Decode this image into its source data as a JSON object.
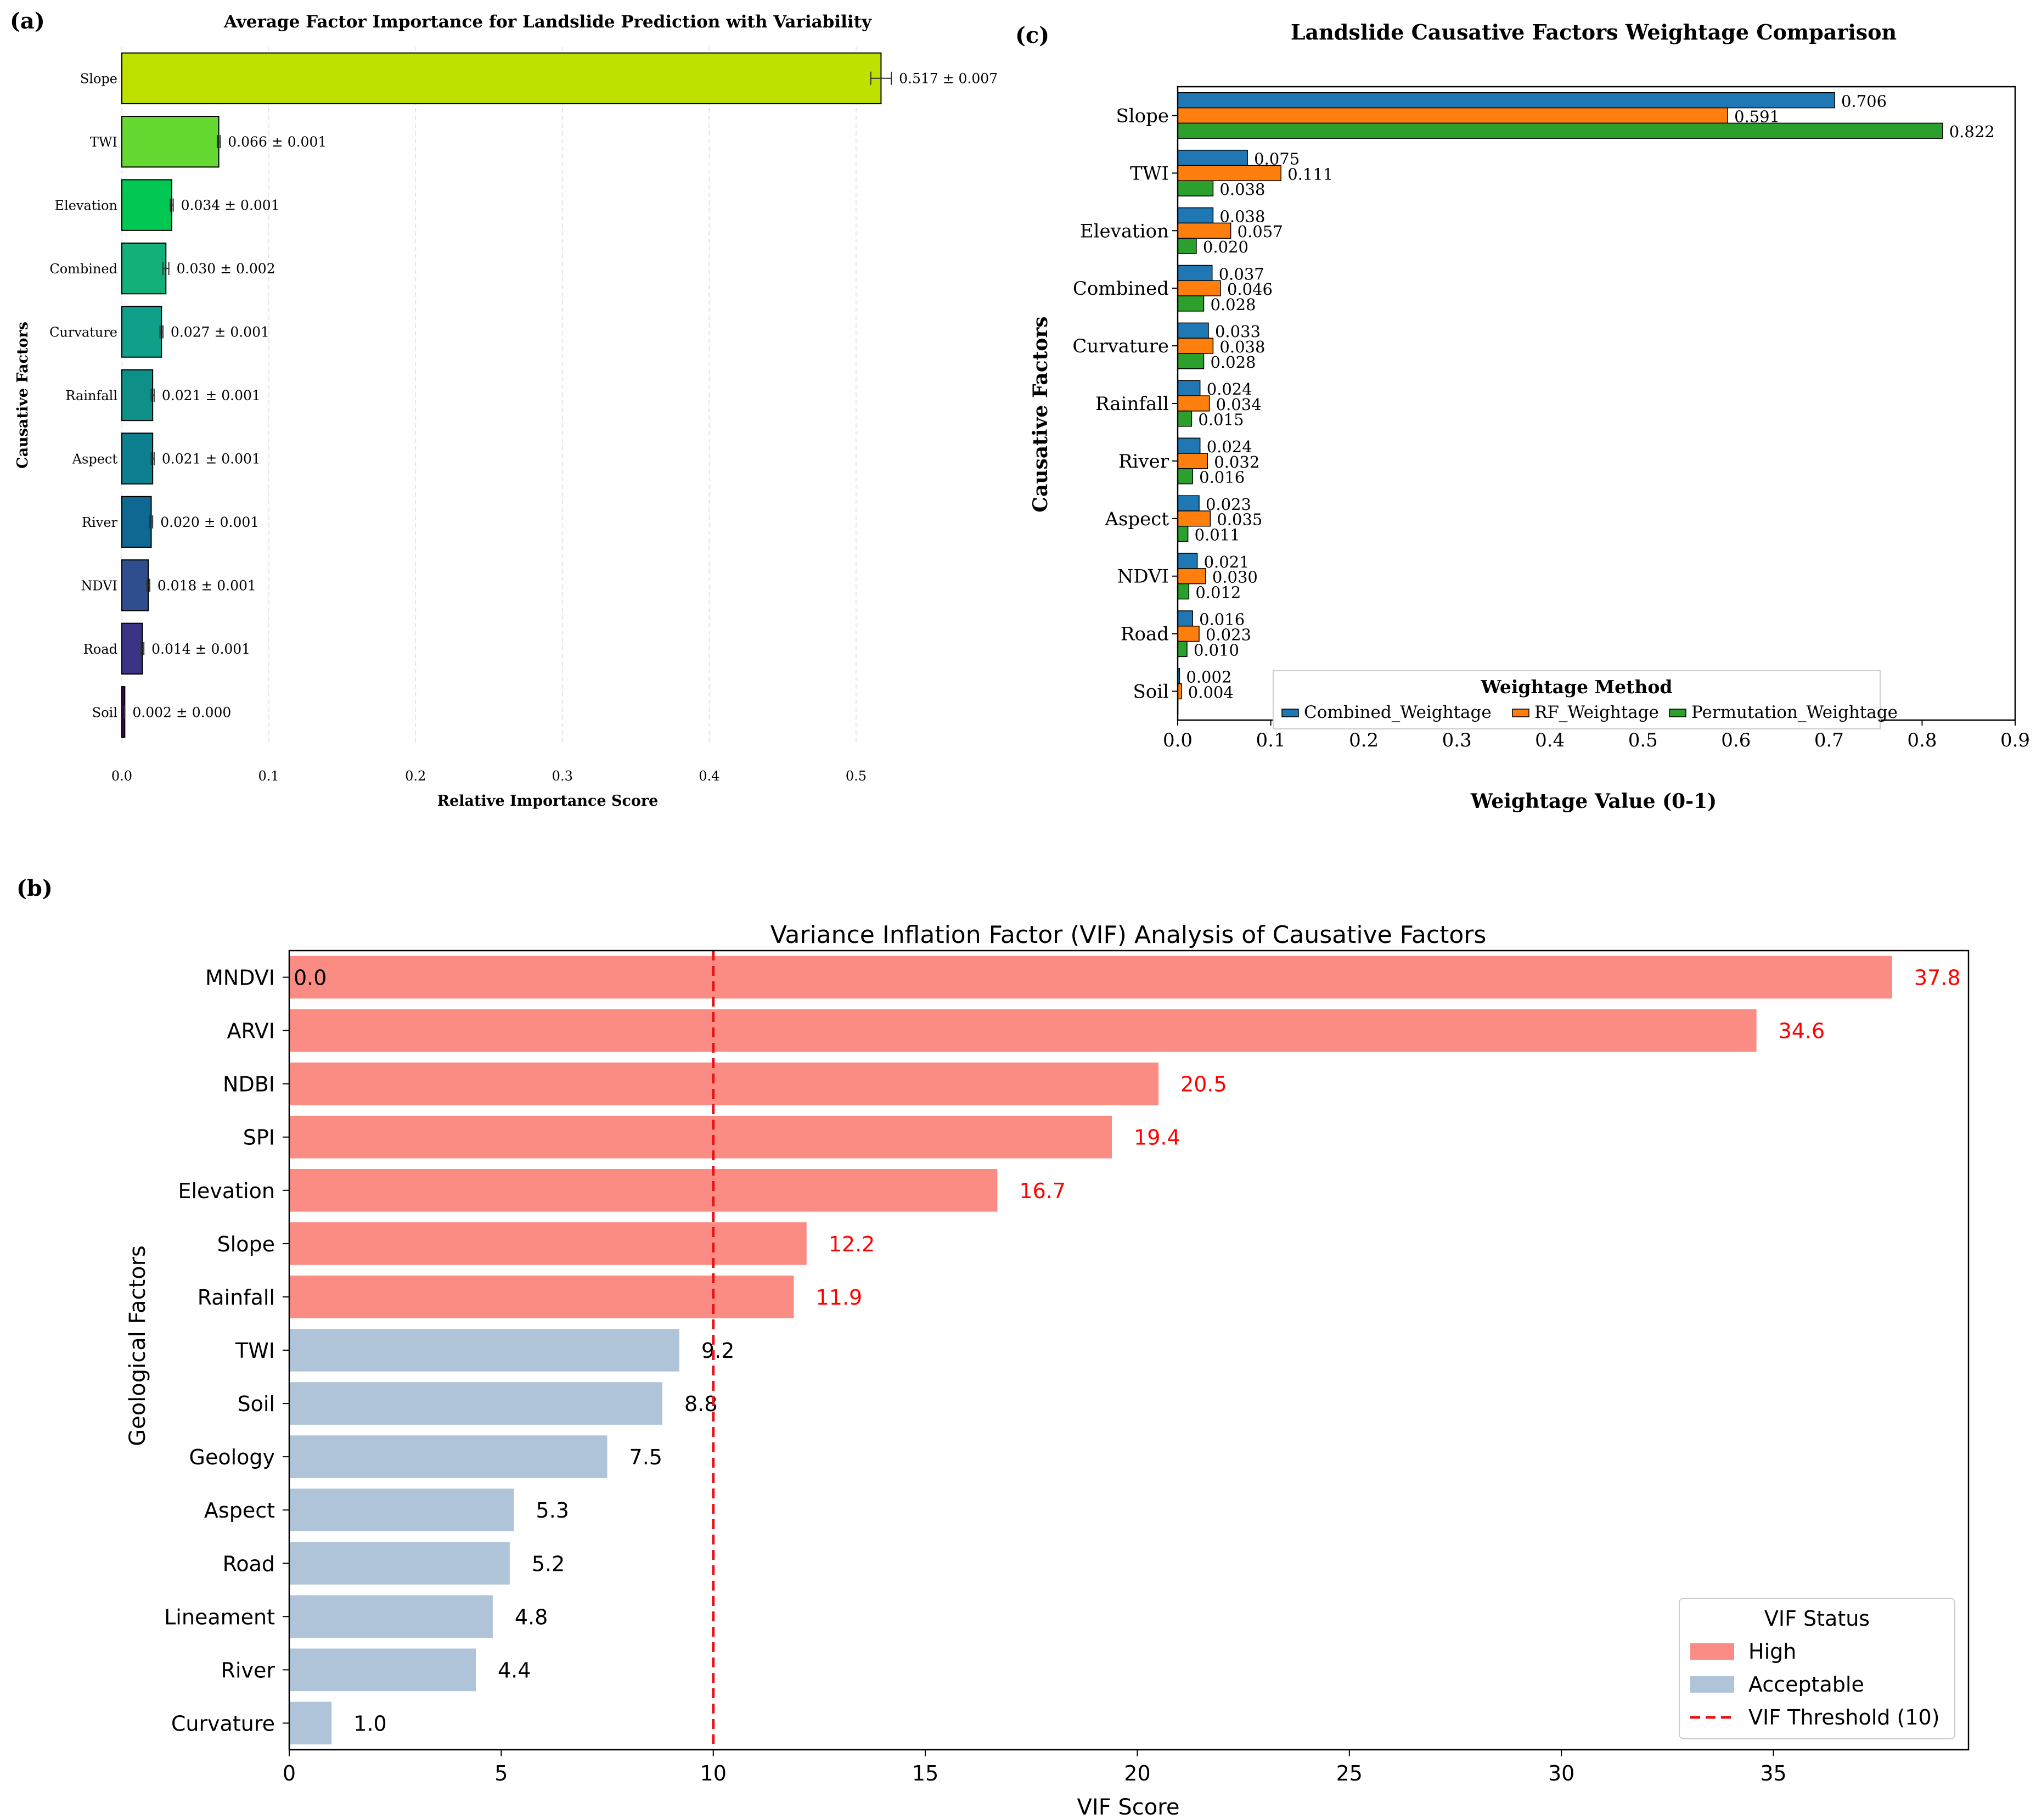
{
  "panels": {
    "a": "(a)",
    "b": "(b)",
    "c": "(c)"
  },
  "chart_data": [
    {
      "id": "a",
      "type": "bar",
      "orientation": "horizontal",
      "title": "Average Factor Importance for Landslide Prediction with Variability",
      "xlabel": "Relative Importance Score",
      "ylabel": "Causative Factors",
      "xlim": [
        0,
        0.58
      ],
      "xticks": [
        "0.0",
        "0.1",
        "0.2",
        "0.3",
        "0.4",
        "0.5"
      ],
      "grid": "x",
      "categories": [
        "Slope",
        "TWI",
        "Elevation",
        "Combined",
        "Curvature",
        "Rainfall",
        "Aspect",
        "River",
        "NDVI",
        "Road",
        "Soil"
      ],
      "values": [
        0.517,
        0.066,
        0.034,
        0.03,
        0.027,
        0.021,
        0.021,
        0.02,
        0.018,
        0.014,
        0.002
      ],
      "errors": [
        0.007,
        0.001,
        0.001,
        0.002,
        0.001,
        0.001,
        0.001,
        0.001,
        0.001,
        0.001,
        0.0
      ],
      "labels": [
        "0.517 ± 0.007",
        "0.066 ± 0.001",
        "0.034 ± 0.001",
        "0.030 ± 0.002",
        "0.027 ± 0.001",
        "0.021 ± 0.001",
        "0.021 ± 0.001",
        "0.020 ± 0.001",
        "0.018 ± 0.001",
        "0.014 ± 0.001",
        "0.002 ± 0.000"
      ],
      "colors": [
        "#c0e000",
        "#65d931",
        "#00c853",
        "#14b07a",
        "#10a08a",
        "#0e9088",
        "#0d7f8e",
        "#0e6892",
        "#2f4e8e",
        "#3b3486",
        "#440154"
      ]
    },
    {
      "id": "c",
      "type": "bar",
      "orientation": "horizontal",
      "title": "Landslide Causative Factors Weightage Comparison",
      "xlabel": "Weightage Value (0-1)",
      "ylabel": "Causative Factors",
      "xlim": [
        0,
        0.9
      ],
      "xticks": [
        "0.0",
        "0.1",
        "0.2",
        "0.3",
        "0.4",
        "0.5",
        "0.6",
        "0.7",
        "0.8",
        "0.9"
      ],
      "categories": [
        "Slope",
        "TWI",
        "Elevation",
        "Combined",
        "Curvature",
        "Rainfall",
        "River",
        "Aspect",
        "NDVI",
        "Road",
        "Soil"
      ],
      "series": [
        {
          "name": "Combined_Weightage",
          "color": "#1f77b4",
          "values": [
            0.706,
            0.075,
            0.038,
            0.037,
            0.033,
            0.024,
            0.024,
            0.023,
            0.021,
            0.016,
            0.002
          ],
          "labels": [
            "0.706",
            "0.075",
            "0.038",
            "0.037",
            "0.033",
            "0.024",
            "0.024",
            "0.023",
            "0.021",
            "0.016",
            "0.002"
          ]
        },
        {
          "name": "RF_Weightage",
          "color": "#ff7f0e",
          "values": [
            0.591,
            0.111,
            0.057,
            0.046,
            0.038,
            0.034,
            0.032,
            0.035,
            0.03,
            0.023,
            0.004
          ],
          "labels": [
            "0.591",
            "0.111",
            "0.057",
            "0.046",
            "0.038",
            "0.034",
            "0.032",
            "0.035",
            "0.030",
            "0.023",
            "0.004"
          ]
        },
        {
          "name": "Permutation_Weightage",
          "color": "#2ca02c",
          "values": [
            0.822,
            0.038,
            0.02,
            0.028,
            0.028,
            0.015,
            0.016,
            0.011,
            0.012,
            0.01,
            0.0
          ],
          "labels": [
            "0.822",
            "0.038",
            "0.020",
            "0.028",
            "0.028",
            "0.015",
            "0.016",
            "0.011",
            "0.012",
            "0.010",
            ""
          ]
        }
      ],
      "legend_title": "Weightage Method",
      "legend_position": "bottom-right"
    },
    {
      "id": "b",
      "type": "bar",
      "orientation": "horizontal",
      "title": "Variance Inflation Factor (VIF) Analysis of Causative Factors",
      "xlabel": "VIF Score",
      "ylabel": "Geological Factors",
      "xlim": [
        0,
        39.6
      ],
      "xticks": [
        "0",
        "5",
        "10",
        "15",
        "20",
        "25",
        "30",
        "35"
      ],
      "categories": [
        "MNDVI",
        "ARVI",
        "NDBI",
        "SPI",
        "Elevation",
        "Slope",
        "Rainfall",
        "TWI",
        "Soil",
        "Geology",
        "Aspect",
        "Road",
        "Lineament",
        "River",
        "Curvature"
      ],
      "values": [
        37.8,
        34.6,
        20.5,
        19.4,
        16.7,
        12.2,
        11.9,
        9.2,
        8.8,
        7.5,
        5.3,
        5.2,
        4.8,
        4.4,
        1.0
      ],
      "labels": [
        "37.8",
        "34.6",
        "20.5",
        "19.4",
        "16.7",
        "12.2",
        "11.9",
        "9.2",
        "8.8",
        "7.5",
        "5.3",
        "5.2",
        "4.8",
        "4.4",
        "1.0"
      ],
      "status": [
        "High",
        "High",
        "High",
        "High",
        "High",
        "High",
        "High",
        "Acceptable",
        "Acceptable",
        "Acceptable",
        "Acceptable",
        "Acceptable",
        "Acceptable",
        "Acceptable",
        "Acceptable"
      ],
      "extra_label": "0.0",
      "threshold": 10,
      "colors": {
        "High": "#fa8c84",
        "Acceptable": "#b0c4d9",
        "threshold": "#e8141c",
        "high_text": "#ff0000",
        "normal_text": "#000000"
      },
      "legend_title": "VIF Status",
      "legend_entries": [
        "High",
        "Acceptable",
        "VIF Threshold (10)"
      ],
      "legend_position": "bottom-right"
    }
  ]
}
